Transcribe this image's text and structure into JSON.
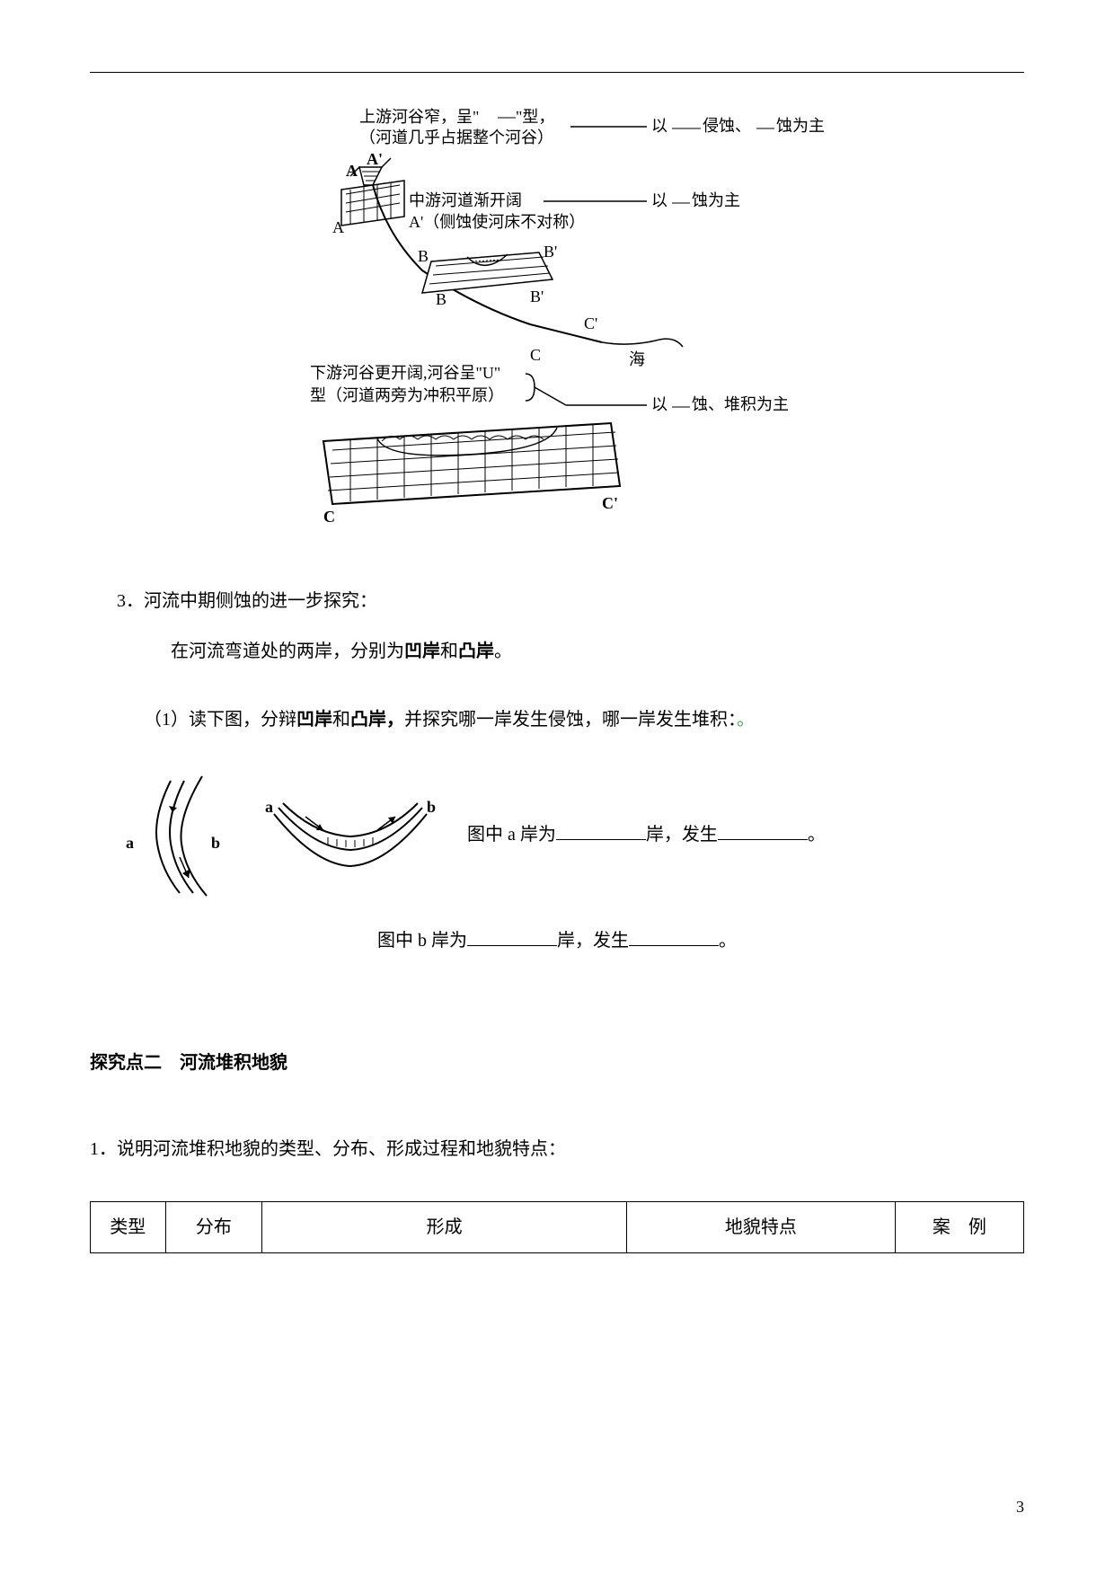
{
  "diagram": {
    "upstream_label1": "上游河谷窄，呈\"",
    "upstream_label2": "\"型，",
    "upstream_label3": "（河道几乎占据整个河谷）",
    "upstream_right1": "以",
    "upstream_right2": "侵蚀、",
    "upstream_right3": "蚀为主",
    "midstream": "中游河道渐开阔",
    "midstream_sub": "A'（侧蚀使河床不对称）",
    "midstream_right1": "以",
    "midstream_right2": "蚀为主",
    "downstream1": "下游河谷更开阔,河谷呈\"U\"",
    "downstream2": "型（河道两旁为冲积平原）",
    "downstream_right1": "以",
    "downstream_right2": "蚀、堆积为主",
    "sea": "海",
    "label_A": "A",
    "label_A2": "A'",
    "label_B": "B",
    "label_B2": "B'",
    "label_C": "C",
    "label_C2": "C'",
    "label_a": "a",
    "label_b": "b"
  },
  "q3": {
    "title": "3．河流中期侧蚀的进一步探究：",
    "line1a": "在河流弯道处的两岸，分别为",
    "line1b": "凹岸",
    "line1c": "和",
    "line1d": "凸岸",
    "line1e": "。",
    "sub1a": "（1）读下图，分辩",
    "sub1b": "凹岸",
    "sub1c": "和",
    "sub1d": "凸岸，",
    "sub1e": "并探究哪一岸发生侵蚀，哪一岸发生堆积：",
    "dot": "。",
    "fill_a1": "图中 a 岸为",
    "fill_a2": "岸，发生",
    "fill_a3": "。",
    "fill_b1": "图中 b 岸为",
    "fill_b2": "岸，发生",
    "fill_b3": "。"
  },
  "section2": {
    "title": "探究点二　河流堆积地貌",
    "q1": "1．说明河流堆积地貌的类型、分布、形成过程和地貌特点：",
    "headers": [
      "类型",
      "分布",
      "形成",
      "地貌特点",
      "案　例"
    ]
  },
  "page_num": "3",
  "table_widths": [
    70,
    90,
    340,
    250,
    120
  ]
}
